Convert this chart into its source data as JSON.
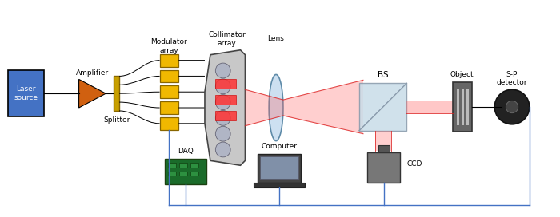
{
  "bg_color": "#ffffff",
  "fig_width": 7.0,
  "fig_height": 2.72,
  "colors": {
    "blue": "#4472c4",
    "orange": "#d06010",
    "yellow": "#f0b800",
    "gold": "#c8a000",
    "red_beam": "#ff6060",
    "bs_color": "#c8dce8",
    "wire_blue": "#4472c4",
    "dark_gray": "#555555",
    "mid_gray": "#888888",
    "light_gray": "#cccccc",
    "col_body": "#c8c8c8",
    "col_dark": "#444444",
    "green_pcb": "#1a6b2a"
  },
  "labels": {
    "laser": "Laser\nsource",
    "amplifier": "Amplifier",
    "splitter": "Splitter",
    "mod_array": "Modulator\narray",
    "col_array": "Collimator\narray",
    "lens": "Lens",
    "bs": "BS",
    "object": "Object",
    "sp": "S-P\ndetector",
    "daq": "DAQ",
    "computer": "Computer",
    "ccd": "CCD"
  }
}
